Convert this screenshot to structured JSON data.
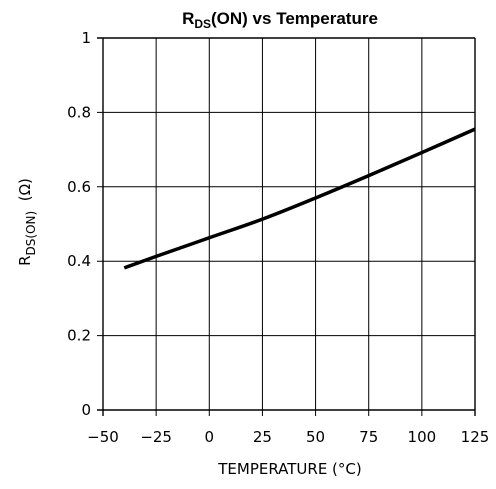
{
  "chart_data": {
    "type": "line",
    "title": {
      "main": "R",
      "sub": "DS",
      "rest": "(ON) vs Temperature"
    },
    "xlabel": "TEMPERATURE (°C)",
    "ylabel": {
      "main": "R",
      "sub": "DS(ON)",
      "rest": "  (Ω)"
    },
    "xlim": [
      -50,
      125
    ],
    "ylim": [
      0,
      1
    ],
    "xticks": [
      -50,
      -25,
      0,
      25,
      50,
      75,
      100,
      125
    ],
    "xtick_labels": [
      "−50",
      "−25",
      "0",
      "25",
      "50",
      "75",
      "100",
      "125"
    ],
    "yticks": [
      0,
      0.2,
      0.4,
      0.6,
      0.8,
      1
    ],
    "ytick_labels": [
      "0",
      "0.2",
      "0.4",
      "0.6",
      "0.8",
      "1"
    ],
    "grid": true,
    "colors": {
      "line": "#000000",
      "grid": "#000000",
      "background": "#ffffff"
    },
    "series": [
      {
        "x": [
          -40,
          -25,
          0,
          25,
          50,
          75,
          100,
          125
        ],
        "y": [
          0.382,
          0.413,
          0.463,
          0.513,
          0.57,
          0.63,
          0.692,
          0.755
        ]
      }
    ]
  }
}
